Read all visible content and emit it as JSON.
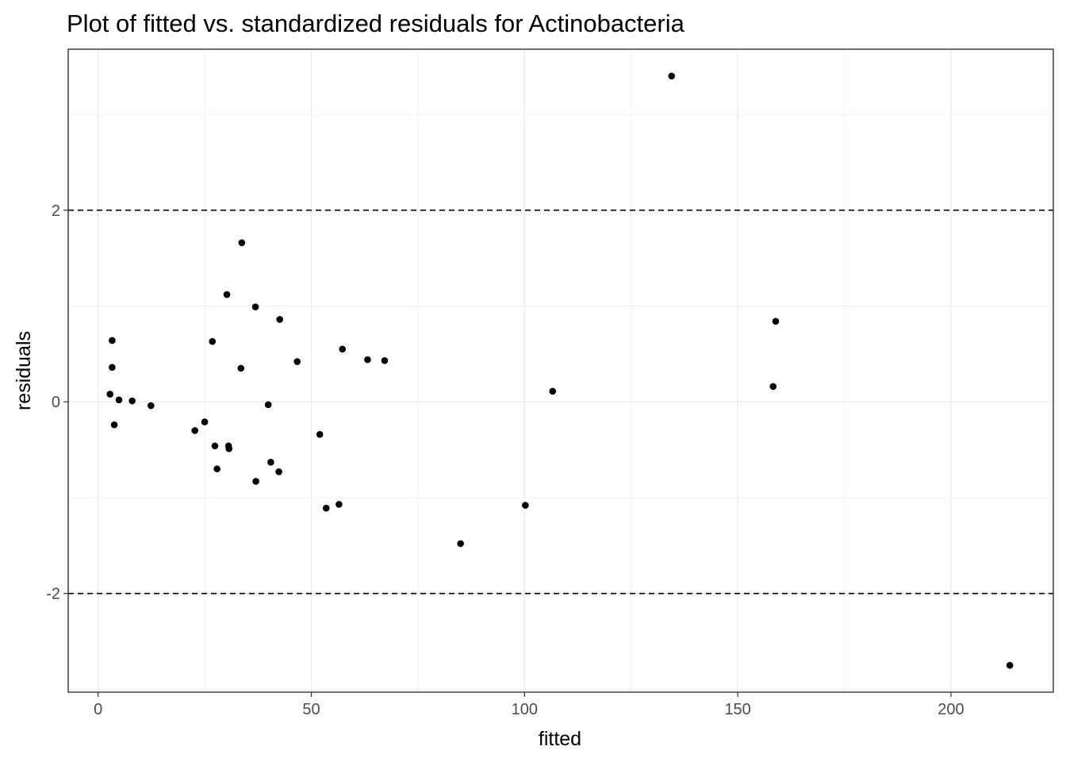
{
  "chart_data": {
    "type": "scatter",
    "title": "Plot of fitted vs. standardized residuals for Actinobacteria",
    "xlabel": "fitted",
    "ylabel": "residuals",
    "xlim": [
      -7,
      224
    ],
    "ylim": [
      -3.03,
      3.68
    ],
    "x_ticks": [
      0,
      50,
      100,
      150,
      200
    ],
    "x_tick_labels": [
      "0",
      "50",
      "100",
      "150",
      "200"
    ],
    "y_ticks": [
      -2,
      0,
      2
    ],
    "y_tick_labels": [
      "-2",
      "0",
      "2"
    ],
    "reference_lines": [
      2,
      -2
    ],
    "grid": true,
    "point_color": "#000000",
    "points": [
      {
        "x": 2.8,
        "y": 0.08
      },
      {
        "x": 3.3,
        "y": 0.64
      },
      {
        "x": 3.3,
        "y": 0.36
      },
      {
        "x": 3.8,
        "y": -0.24
      },
      {
        "x": 4.9,
        "y": 0.02
      },
      {
        "x": 8.0,
        "y": 0.01
      },
      {
        "x": 12.4,
        "y": -0.04
      },
      {
        "x": 22.7,
        "y": -0.3
      },
      {
        "x": 25.0,
        "y": -0.21
      },
      {
        "x": 26.8,
        "y": 0.63
      },
      {
        "x": 27.4,
        "y": -0.46
      },
      {
        "x": 27.9,
        "y": -0.7
      },
      {
        "x": 30.2,
        "y": 1.12
      },
      {
        "x": 30.6,
        "y": -0.46
      },
      {
        "x": 30.7,
        "y": -0.49
      },
      {
        "x": 33.5,
        "y": 0.35
      },
      {
        "x": 33.7,
        "y": 1.66
      },
      {
        "x": 36.9,
        "y": 0.99
      },
      {
        "x": 37.0,
        "y": -0.83
      },
      {
        "x": 39.9,
        "y": -0.03
      },
      {
        "x": 40.5,
        "y": -0.63
      },
      {
        "x": 42.4,
        "y": -0.73
      },
      {
        "x": 42.6,
        "y": 0.86
      },
      {
        "x": 46.7,
        "y": 0.42
      },
      {
        "x": 52.0,
        "y": -0.34
      },
      {
        "x": 53.5,
        "y": -1.11
      },
      {
        "x": 56.5,
        "y": -1.07
      },
      {
        "x": 57.3,
        "y": 0.55
      },
      {
        "x": 63.2,
        "y": 0.44
      },
      {
        "x": 67.2,
        "y": 0.43
      },
      {
        "x": 85.0,
        "y": -1.48
      },
      {
        "x": 100.2,
        "y": -1.08
      },
      {
        "x": 106.6,
        "y": 0.11
      },
      {
        "x": 134.5,
        "y": 3.4
      },
      {
        "x": 158.3,
        "y": 0.16
      },
      {
        "x": 158.9,
        "y": 0.84
      },
      {
        "x": 213.8,
        "y": -2.75
      }
    ]
  }
}
